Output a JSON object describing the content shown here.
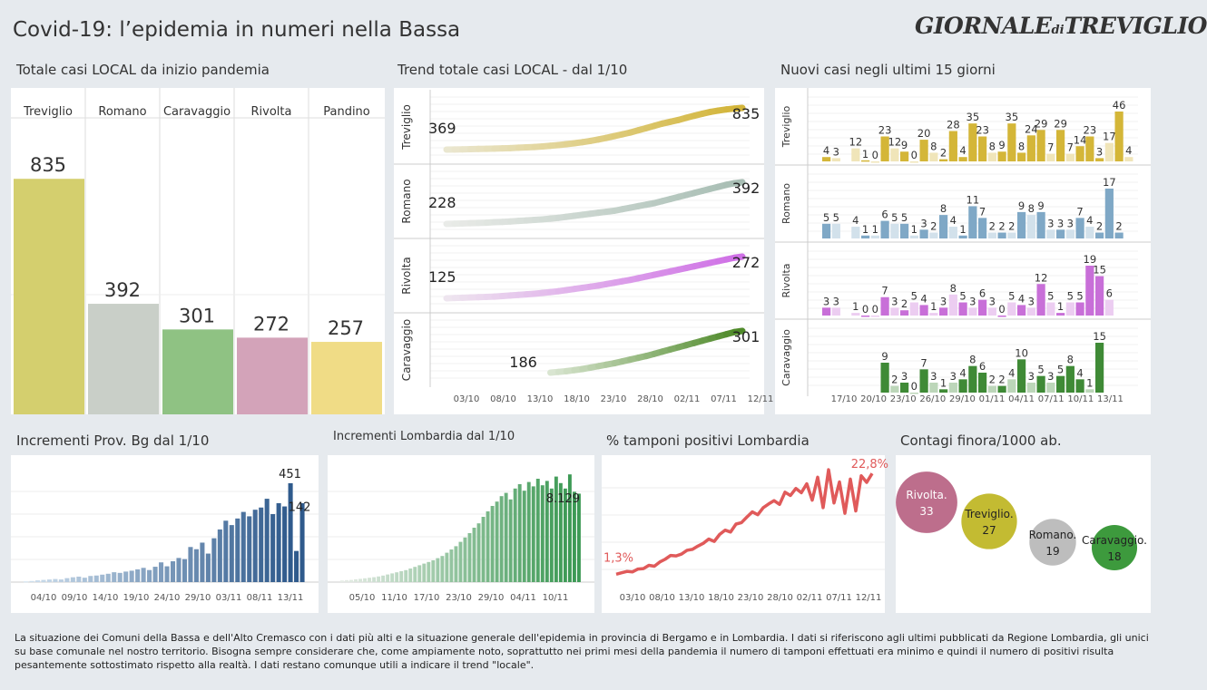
{
  "header": {
    "title": "Covid-19: l’epidemia  in numeri nella Bassa",
    "logo_main": "GIORNALE",
    "logo_di": "di",
    "logo_city": "TREVIGLIO"
  },
  "sections": {
    "totale": "Totale casi  LOCAL da inizio pandemia",
    "trend": "Trend totale casi  LOCAL - dal 1/10",
    "nuovi": "Nuovi casi negli ultimi 15 giorni",
    "bg": "Incrementi Prov. Bg dal 1/10",
    "lomb": "Incrementi Lombardia dal 1/10",
    "tamponi": "% tamponi positivi Lombardia",
    "contagi": "Contagi finora/1000 ab."
  },
  "colors": {
    "Treviglio": "#c9bf3d",
    "Romano": "#b9c6bd",
    "Caravaggio": "#6fb05c",
    "Rivolta": "#c98aa6",
    "Pandino": "#f0d36a"
  },
  "chart_data": [
    {
      "id": "totale",
      "type": "bar",
      "categories": [
        "Treviglio",
        "Romano",
        "Caravaggio",
        "Rivolta",
        "Pandino"
      ],
      "values": [
        835,
        392,
        301,
        272,
        257
      ],
      "ylim": [
        0,
        1000
      ],
      "colors": [
        "#d4cf6e",
        "#c9cfc8",
        "#8fc283",
        "#d3a3b9",
        "#f0dc86"
      ]
    },
    {
      "id": "trend",
      "type": "line",
      "x_ticks": [
        "03/10",
        "08/10",
        "13/10",
        "18/10",
        "23/10",
        "28/10",
        "02/11",
        "07/11",
        "12/11"
      ],
      "series": [
        {
          "name": "Treviglio",
          "start": 369,
          "end": 835,
          "values": [
            369,
            370,
            372,
            374,
            376,
            378,
            380,
            383,
            386,
            390,
            394,
            398,
            404,
            412,
            420,
            430,
            440,
            452,
            466,
            482,
            500,
            520,
            540,
            560,
            585,
            610,
            635,
            660,
            680,
            700,
            725,
            748,
            770,
            790,
            805,
            818,
            828,
            835
          ],
          "color_start": "#ebe8d4",
          "color_end": "#d3b53a"
        },
        {
          "name": "Romano",
          "start": 228,
          "end": 392,
          "values": [
            228,
            229,
            230,
            231,
            232,
            233,
            235,
            236,
            238,
            240,
            242,
            244,
            246,
            249,
            252,
            256,
            260,
            264,
            268,
            272,
            276,
            280,
            286,
            292,
            298,
            304,
            310,
            318,
            326,
            334,
            342,
            350,
            358,
            366,
            374,
            382,
            388,
            392
          ],
          "color_start": "#ebece9",
          "color_end": "#a8beb4"
        },
        {
          "name": "Rivolta",
          "start": 125,
          "end": 272,
          "values": [
            125,
            126,
            127,
            128,
            129,
            130,
            131,
            133,
            135,
            137,
            139,
            141,
            144,
            147,
            150,
            154,
            158,
            162,
            166,
            170,
            175,
            180,
            185,
            190,
            196,
            202,
            208,
            214,
            220,
            226,
            232,
            238,
            244,
            250,
            256,
            262,
            268,
            272
          ],
          "color_start": "#efe8ef",
          "color_end": "#cf70e6"
        },
        {
          "name": "Caravaggio",
          "start": 186,
          "end": 301,
          "first_index": 13,
          "values": [
            186,
            188,
            190,
            193,
            196,
            200,
            204,
            208,
            212,
            217,
            222,
            227,
            232,
            238,
            244,
            250,
            256,
            262,
            268,
            274,
            280,
            286,
            292,
            298,
            301
          ],
          "color_start": "#dfe9d8",
          "color_end": "#4f8a2a"
        }
      ]
    },
    {
      "id": "nuovi",
      "type": "bar",
      "x_ticks": [
        "17/10",
        "20/10",
        "23/10",
        "26/10",
        "29/10",
        "01/11",
        "04/11",
        "07/11",
        "10/11",
        "13/11"
      ],
      "series": [
        {
          "name": "Treviglio",
          "max": 46,
          "values": [
            4,
            3,
            null,
            12,
            1,
            0,
            23,
            12,
            9,
            0,
            20,
            8,
            2,
            28,
            4,
            35,
            23,
            8,
            9,
            35,
            8,
            24,
            29,
            7,
            29,
            7,
            14,
            23,
            3,
            17,
            46,
            4
          ],
          "color": "#d4b638"
        },
        {
          "name": "Romano",
          "max": 17,
          "values": [
            5,
            5,
            null,
            4,
            1,
            1,
            6,
            5,
            5,
            1,
            3,
            2,
            8,
            4,
            1,
            11,
            7,
            2,
            2,
            2,
            9,
            8,
            9,
            3,
            3,
            3,
            7,
            4,
            2,
            17,
            2,
            null
          ],
          "color": "#7fa8c6"
        },
        {
          "name": "Rivolta",
          "max": 19,
          "values": [
            3,
            3,
            null,
            1,
            0,
            0,
            7,
            3,
            2,
            5,
            4,
            1,
            3,
            8,
            5,
            3,
            6,
            3,
            0,
            5,
            4,
            3,
            12,
            5,
            1,
            5,
            5,
            19,
            15,
            6,
            null,
            null
          ],
          "color": "#c86fd8"
        },
        {
          "name": "Caravaggio",
          "max": 15,
          "values": [
            null,
            null,
            null,
            null,
            null,
            null,
            9,
            2,
            3,
            0,
            7,
            3,
            1,
            3,
            4,
            8,
            6,
            2,
            2,
            4,
            10,
            3,
            5,
            3,
            5,
            8,
            4,
            1,
            15,
            null,
            null,
            null
          ],
          "color": "#3f8a36"
        }
      ]
    },
    {
      "id": "bg",
      "type": "bar",
      "x_ticks": [
        "04/10",
        "09/10",
        "14/10",
        "19/10",
        "24/10",
        "29/10",
        "03/11",
        "08/11",
        "13/11"
      ],
      "values": [
        3,
        5,
        8,
        10,
        12,
        14,
        12,
        18,
        22,
        25,
        20,
        28,
        30,
        34,
        38,
        45,
        42,
        48,
        52,
        58,
        65,
        55,
        70,
        90,
        72,
        95,
        110,
        105,
        160,
        150,
        180,
        130,
        200,
        240,
        280,
        260,
        290,
        320,
        300,
        330,
        340,
        380,
        310,
        360,
        345,
        451,
        142,
        360
      ],
      "labels": {
        "max": 451,
        "last": 142
      },
      "color_start": "#cfe0ee",
      "color_end": "#2f5a8c"
    },
    {
      "id": "lomb",
      "type": "bar",
      "x_ticks": [
        "05/10",
        "11/10",
        "17/10",
        "23/10",
        "29/10",
        "04/11",
        "10/11"
      ],
      "values": [
        150,
        180,
        200,
        260,
        300,
        350,
        400,
        450,
        520,
        600,
        700,
        800,
        900,
        1000,
        1100,
        1250,
        1400,
        1550,
        1700,
        1850,
        2000,
        2200,
        2400,
        2700,
        3000,
        3300,
        3700,
        4100,
        4500,
        5000,
        5400,
        6000,
        6500,
        7000,
        7400,
        7900,
        8200,
        7600,
        8600,
        9000,
        8400,
        9200,
        8800,
        9500,
        8900,
        9300,
        8600,
        9700,
        9100,
        8600,
        9900,
        8300,
        8129
      ],
      "labels": {
        "last": "8.129"
      },
      "ymax": 10000,
      "color_start": "#e6ece6",
      "color_end": "#3d9a55"
    },
    {
      "id": "tamponi",
      "type": "line",
      "x_ticks": [
        "03/10",
        "08/10",
        "13/10",
        "18/10",
        "23/10",
        "28/10",
        "02/11",
        "07/11",
        "12/11"
      ],
      "values": [
        1.3,
        1.6,
        1.9,
        1.8,
        2.4,
        2.5,
        3.2,
        3.0,
        3.9,
        4.5,
        5.3,
        5.2,
        5.6,
        6.4,
        6.6,
        7.3,
        7.9,
        8.8,
        8.3,
        9.8,
        10.7,
        10.3,
        12.0,
        12.3,
        13.5,
        14.6,
        14.0,
        15.5,
        16.3,
        17.0,
        16.2,
        18.8,
        18.1,
        19.6,
        18.7,
        20.6,
        17.1,
        22.0,
        15.5,
        23.6,
        16.5,
        21.0,
        14.3,
        21.6,
        14.8,
        22.3,
        20.9,
        22.8
      ],
      "labels": {
        "first": "1,3%",
        "last": "22,8%"
      },
      "color": "#e05a5a"
    },
    {
      "id": "contagi",
      "type": "bubble",
      "items": [
        {
          "name": "Rivolta.",
          "value": 33,
          "color": "#bd6e8c"
        },
        {
          "name": "Treviglio.",
          "value": 27,
          "color": "#c3bb32"
        },
        {
          "name": "Romano.",
          "value": 19,
          "color": "#bdbdbd"
        },
        {
          "name": "Caravaggio.",
          "value": 18,
          "color": "#3d9a3d"
        }
      ]
    }
  ],
  "footnote": "La situazione dei Comuni della Bassa e dell'Alto Cremasco con i dati più alti e la situazione generale dell'epidemia in provincia di Bergamo e in Lombardia.  I dati si riferiscono agli ultimi pubblicati da Regione Lombardia, gli unici su base comunale nel  nostro territorio.  Bisogna sempre considerare che, come ampiamente noto, soprattutto nei primi mesi della pandemia il numero di tamponi effettuati era minimo e quindi il numero di positivi risulta pesantemente sottostimato rispetto alla realtà. I dati restano comunque utili a indicare il trend \"locale\"."
}
